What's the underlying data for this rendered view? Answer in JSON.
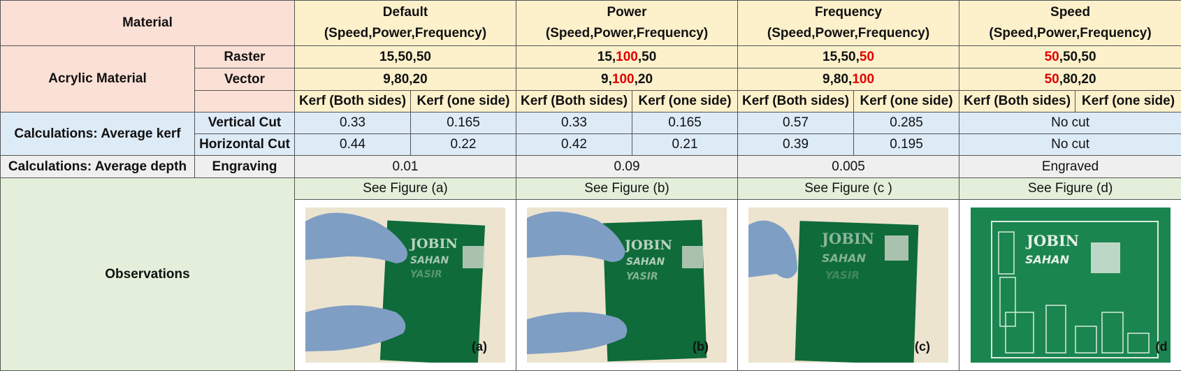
{
  "header": {
    "material": "Material",
    "groups": [
      {
        "name": "Default",
        "sub": "(Speed,Power,Frequency)"
      },
      {
        "name": "Power",
        "sub": "(Speed,Power,Frequency)"
      },
      {
        "name": "Frequency",
        "sub": "(Speed,Power,Frequency)"
      },
      {
        "name": "Speed",
        "sub": "(Speed,Power,Frequency)"
      }
    ]
  },
  "acrylic": {
    "label": "Acrylic Material",
    "raster_label": "Raster",
    "vector_label": "Vector",
    "raster": [
      {
        "a": "15,50,50",
        "b": "",
        "c": "",
        "d": "",
        "e": ""
      },
      {
        "a": "15,",
        "b": "100",
        "c": ",50",
        "d": "",
        "e": ""
      },
      {
        "a": "15,50,",
        "b": "50",
        "c": "",
        "d": "",
        "e": ""
      },
      {
        "a": "",
        "b": "50",
        "c": ",50,50",
        "d": "",
        "e": ""
      }
    ],
    "vector": [
      {
        "a": "9,80,20",
        "b": "",
        "c": ""
      },
      {
        "a": "9,",
        "b": "100",
        "c": ",20"
      },
      {
        "a": "9,80,",
        "b": "100",
        "c": ""
      },
      {
        "a": "",
        "b": "50",
        "c": ",80,20"
      }
    ],
    "kerf_both": "Kerf (Both sides)",
    "kerf_one": "Kerf (one side)"
  },
  "kerf": {
    "label": "Calculations: Average kerf",
    "vertical_label": "Vertical Cut",
    "horizontal_label": "Horizontal Cut",
    "vertical": [
      "0.33",
      "0.165",
      "0.33",
      "0.165",
      "0.57",
      "0.285"
    ],
    "horizontal": [
      "0.44",
      "0.22",
      "0.42",
      "0.21",
      "0.39",
      "0.195"
    ],
    "vertical_speed": "No cut",
    "horizontal_speed": "No cut"
  },
  "depth": {
    "label": "Calculations: Average depth",
    "engraving_label": "Engraving",
    "values": [
      "0.01",
      "0.09",
      "0.005",
      "Engraved"
    ]
  },
  "observations": {
    "label": "Observations",
    "figures": [
      "See Figure (a)",
      "See Figure (b)",
      "See Figure (c )",
      "See Figure (d)"
    ],
    "photos": [
      {
        "caption": "(a)",
        "line1": "JOBIN",
        "line2": "SAHAN",
        "line3": "YASIR"
      },
      {
        "caption": "(b)",
        "line1": "JOBIN",
        "line2": "SAHAN",
        "line3": "YASIR"
      },
      {
        "caption": "(c)",
        "line1": "JOBIN",
        "line2": "SAHAN",
        "line3": "YASIR"
      },
      {
        "caption": "(d",
        "line1": "JOBIN",
        "line2": "SAHAN",
        "line3": ""
      }
    ]
  },
  "colors": {
    "pink": "#fbe0d6",
    "yellow": "#fdf1cc",
    "blue": "#ddebf7",
    "gray": "#efefef",
    "green": "#e3efda",
    "highlight": "#e00000",
    "acrylic": "#0f6b3a",
    "glove": "#7f9ec4"
  }
}
